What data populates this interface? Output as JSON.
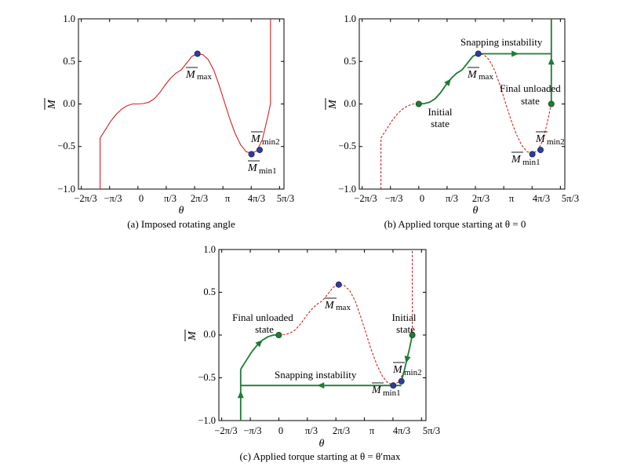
{
  "colors": {
    "red_curve": "#d62020",
    "green_path": "#1e7b32",
    "blue_point": "#2b3f9e",
    "axis": "#000000"
  },
  "chart_data": [
    {
      "type": "line",
      "caption": "(a) Imposed rotating angle",
      "xlabel": "θ",
      "ylabel": "M",
      "xlim": [
        -2.2,
        5.4
      ],
      "ylim": [
        -1.0,
        1.0
      ],
      "xticks": [
        -2.0944,
        -1.0472,
        0,
        1.0472,
        2.0944,
        3.1416,
        4.1888,
        5.236
      ],
      "xtick_labels": [
        "−2π/3",
        "−π/3",
        "0",
        "π/3",
        "2π/3",
        "π",
        "4π/3",
        "5π/3"
      ],
      "yticks": [
        -1.0,
        -0.5,
        0.0,
        0.5,
        1.0
      ],
      "ytick_labels": [
        "−1.0",
        "−0.5",
        "0.0",
        "0.5",
        "1.0"
      ],
      "series": [
        {
          "style": "solid-red",
          "x": [
            -1.4,
            -1.4,
            -1.2,
            -1.0,
            -0.8,
            -0.6,
            -0.4,
            -0.2,
            0.0,
            0.2,
            0.4,
            0.6,
            0.8,
            1.0,
            1.2,
            1.4,
            1.6,
            1.8,
            2.0,
            2.2,
            2.4,
            2.6,
            2.8,
            3.0,
            3.2,
            3.4,
            3.6,
            3.8,
            4.0,
            4.2,
            4.4,
            4.6,
            4.8,
            4.9,
            4.9
          ],
          "y": [
            -1.0,
            -0.4,
            -0.3,
            -0.2,
            -0.12,
            -0.06,
            -0.02,
            0.0,
            0.0,
            0.005,
            0.02,
            0.06,
            0.13,
            0.22,
            0.3,
            0.36,
            0.4,
            0.48,
            0.56,
            0.59,
            0.58,
            0.52,
            0.4,
            0.22,
            0.02,
            -0.18,
            -0.35,
            -0.48,
            -0.56,
            -0.58,
            -0.55,
            -0.42,
            -0.15,
            0.0,
            1.0
          ]
        }
      ],
      "points": [
        {
          "x": 2.2,
          "y": 0.59
        },
        {
          "x": 4.2,
          "y": -0.59
        },
        {
          "x": 4.5,
          "y": -0.54
        }
      ],
      "annotations": [
        {
          "label": "M",
          "sub": "max"
        },
        {
          "label": "M",
          "sub": "min2"
        },
        {
          "label": "M",
          "sub": "min1"
        }
      ]
    },
    {
      "type": "line",
      "caption": "(b) Applied torque starting at θ = 0",
      "xlabel": "θ",
      "ylabel": "M",
      "xlim": [
        -2.2,
        5.4
      ],
      "ylim": [
        -1.0,
        1.0
      ],
      "xticks": [
        -2.0944,
        -1.0472,
        0,
        1.0472,
        2.0944,
        3.1416,
        4.1888,
        5.236
      ],
      "xtick_labels": [
        "−2π/3",
        "−π/3",
        "0",
        "π/3",
        "2π/3",
        "π",
        "4π/3",
        "5π/3"
      ],
      "yticks": [
        -1.0,
        -0.5,
        0.0,
        0.5,
        1.0
      ],
      "ytick_labels": [
        "−1.0",
        "−0.5",
        "0.0",
        "0.5",
        "1.0"
      ],
      "series": [
        {
          "style": "dashed-red",
          "x": [
            -1.4,
            -1.4,
            -1.2,
            -1.0,
            -0.8,
            -0.6,
            -0.4,
            -0.2,
            0.0,
            0.2,
            0.4,
            0.6,
            0.8,
            1.0,
            1.2,
            1.4,
            1.6,
            1.8,
            2.0,
            2.2,
            2.4,
            2.6,
            2.8,
            3.0,
            3.2,
            3.4,
            3.6,
            3.8,
            4.0,
            4.2,
            4.4,
            4.6,
            4.8,
            4.9,
            4.9
          ],
          "y": [
            -1.0,
            -0.4,
            -0.3,
            -0.2,
            -0.12,
            -0.06,
            -0.02,
            0.0,
            0.0,
            0.005,
            0.02,
            0.06,
            0.13,
            0.22,
            0.3,
            0.36,
            0.4,
            0.48,
            0.56,
            0.59,
            0.58,
            0.52,
            0.4,
            0.22,
            0.02,
            -0.18,
            -0.35,
            -0.48,
            -0.56,
            -0.58,
            -0.55,
            -0.42,
            -0.15,
            0.0,
            1.0
          ]
        },
        {
          "style": "solid-green",
          "x": [
            0.0,
            0.2,
            0.4,
            0.6,
            0.8,
            1.0,
            1.2,
            1.4,
            1.6,
            1.8,
            2.0,
            2.2
          ],
          "y": [
            0.0,
            0.005,
            0.02,
            0.06,
            0.13,
            0.22,
            0.3,
            0.36,
            0.4,
            0.48,
            0.56,
            0.59
          ]
        },
        {
          "style": "solid-green",
          "x": [
            2.2,
            4.9
          ],
          "y": [
            0.59,
            0.59
          ]
        },
        {
          "style": "solid-green",
          "x": [
            4.9,
            4.9
          ],
          "y": [
            0.0,
            1.0
          ]
        }
      ],
      "points": [
        {
          "x": 2.2,
          "y": 0.59,
          "color": "blue"
        },
        {
          "x": 4.2,
          "y": -0.59,
          "color": "blue"
        },
        {
          "x": 4.5,
          "y": -0.54,
          "color": "blue"
        },
        {
          "x": 0.0,
          "y": 0.0,
          "color": "green"
        },
        {
          "x": 4.9,
          "y": 0.0,
          "color": "green"
        }
      ],
      "annotations": [
        {
          "text": "Snapping instability"
        },
        {
          "text": "Final unloaded"
        },
        {
          "text": "state"
        },
        {
          "text": "Initial"
        },
        {
          "text": "state"
        },
        {
          "label": "M",
          "sub": "max"
        },
        {
          "label": "M",
          "sub": "min2"
        },
        {
          "label": "M",
          "sub": "min1"
        }
      ]
    },
    {
      "type": "line",
      "caption": "(c) Applied torque starting at θ = θ′max",
      "xlabel": "θ",
      "ylabel": "M",
      "xlim": [
        -2.2,
        5.4
      ],
      "ylim": [
        -1.0,
        1.0
      ],
      "xticks": [
        -2.0944,
        -1.0472,
        0,
        1.0472,
        2.0944,
        3.1416,
        4.1888,
        5.236
      ],
      "xtick_labels": [
        "−2π/3",
        "−π/3",
        "0",
        "π/3",
        "2π/3",
        "π",
        "4π/3",
        "5π/3"
      ],
      "yticks": [
        -1.0,
        -0.5,
        0.0,
        0.5,
        1.0
      ],
      "ytick_labels": [
        "−1.0",
        "−0.5",
        "0.0",
        "0.5",
        "1.0"
      ],
      "series": [
        {
          "style": "dashed-red",
          "x": [
            0.0,
            0.2,
            0.4,
            0.6,
            0.8,
            1.0,
            1.2,
            1.4,
            1.6,
            1.8,
            2.0,
            2.2,
            2.4,
            2.6,
            2.8,
            3.0,
            3.2,
            3.4,
            3.6,
            3.8,
            4.0,
            4.2,
            4.4,
            4.6,
            4.8,
            4.9,
            4.9
          ],
          "y": [
            0.0,
            0.005,
            0.02,
            0.06,
            0.13,
            0.22,
            0.3,
            0.36,
            0.4,
            0.48,
            0.56,
            0.59,
            0.58,
            0.52,
            0.4,
            0.22,
            0.02,
            -0.18,
            -0.35,
            -0.48,
            -0.56,
            -0.58,
            -0.55,
            -0.42,
            -0.15,
            0.0,
            1.0
          ]
        },
        {
          "style": "solid-green",
          "x": [
            4.9,
            4.8,
            4.6,
            4.5
          ],
          "y": [
            0.0,
            -0.15,
            -0.42,
            -0.54
          ]
        },
        {
          "style": "solid-green",
          "x": [
            4.5,
            -1.4
          ],
          "y": [
            -0.59,
            -0.59
          ]
        },
        {
          "style": "solid-green",
          "x": [
            -1.4,
            -1.4
          ],
          "y": [
            -1.0,
            -0.4
          ]
        },
        {
          "style": "solid-green",
          "x": [
            -1.4,
            -1.2,
            -1.0,
            -0.8,
            -0.6,
            -0.4,
            -0.2,
            0.0
          ],
          "y": [
            -0.4,
            -0.3,
            -0.2,
            -0.12,
            -0.06,
            -0.02,
            0.0,
            0.0
          ]
        }
      ],
      "points": [
        {
          "x": 2.2,
          "y": 0.59,
          "color": "blue"
        },
        {
          "x": 4.2,
          "y": -0.59,
          "color": "blue"
        },
        {
          "x": 4.5,
          "y": -0.54,
          "color": "blue"
        },
        {
          "x": 0.0,
          "y": 0.0,
          "color": "green"
        },
        {
          "x": 4.9,
          "y": 0.0,
          "color": "green"
        }
      ],
      "annotations": [
        {
          "text": "Final unloaded"
        },
        {
          "text": "state"
        },
        {
          "text": "Initial"
        },
        {
          "text": "state"
        },
        {
          "text": "Snapping instability"
        },
        {
          "label": "M",
          "sub": "max"
        },
        {
          "label": "M",
          "sub": "min2"
        },
        {
          "label": "M",
          "sub": "min1"
        }
      ]
    }
  ]
}
